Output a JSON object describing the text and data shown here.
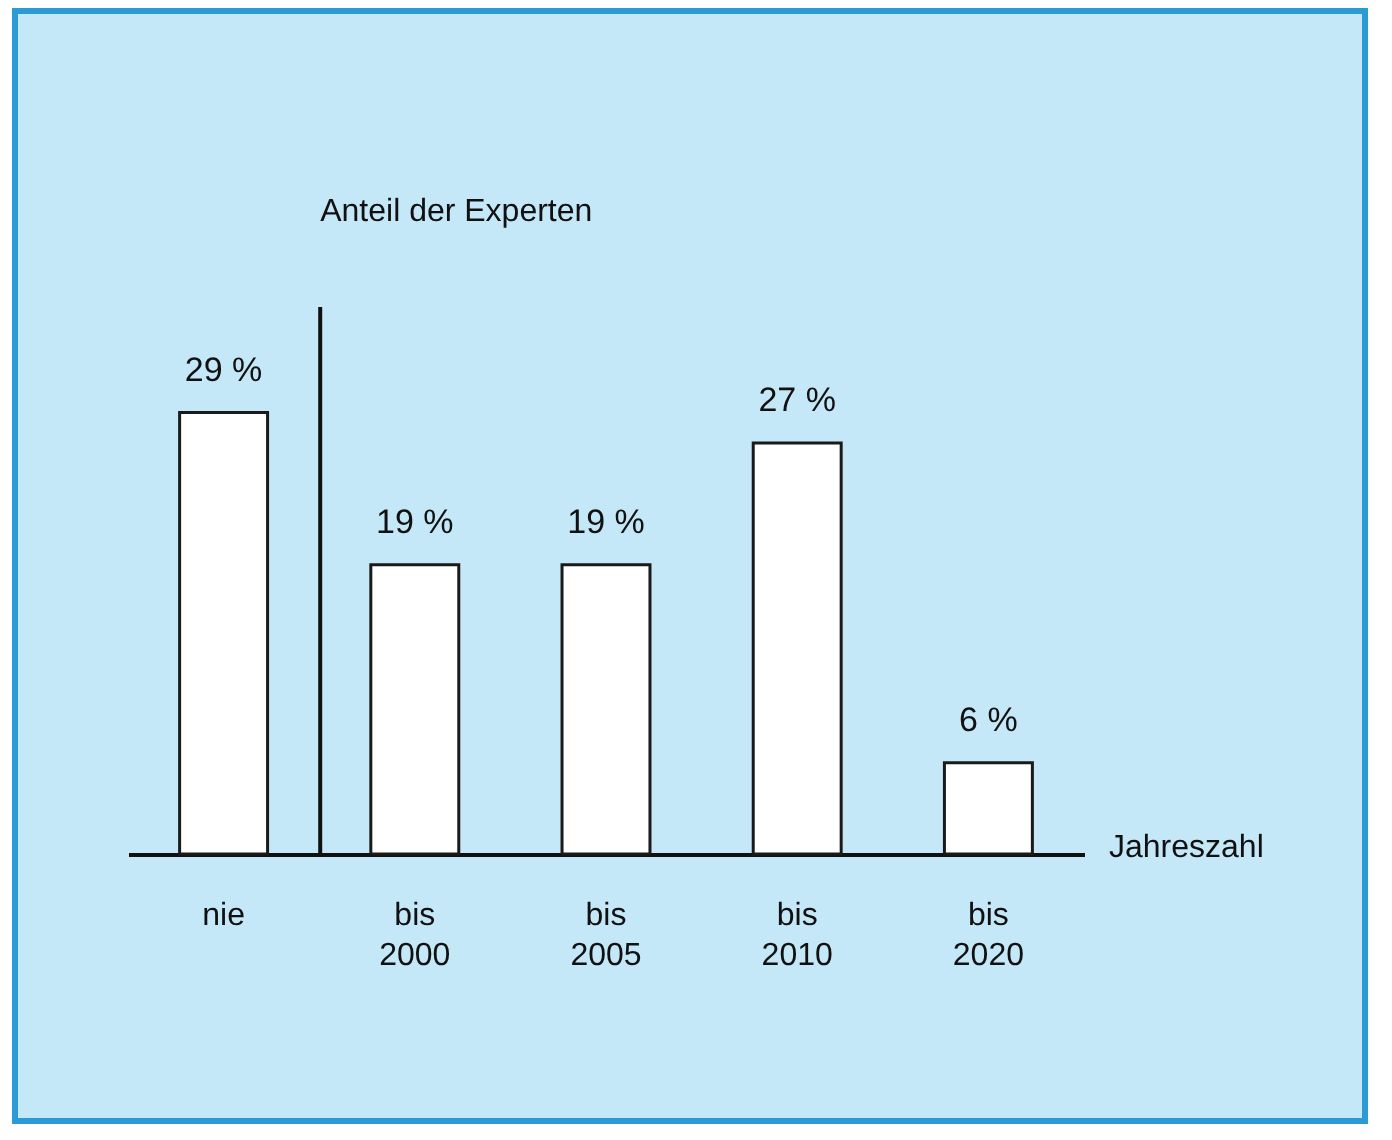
{
  "chart_data": {
    "type": "bar",
    "ylabel": "Anteil der Experten",
    "xlabel": "Jahreszahl",
    "categories": [
      "nie",
      "bis 2000",
      "bis 2005",
      "bis 2010",
      "bis 2020"
    ],
    "values": [
      29,
      19,
      19,
      27,
      6
    ],
    "value_labels": [
      "29 %",
      "19 %",
      "19 %",
      "27 %",
      "6 %"
    ],
    "color": "#ffffff",
    "ylim": [
      0,
      36
    ]
  }
}
